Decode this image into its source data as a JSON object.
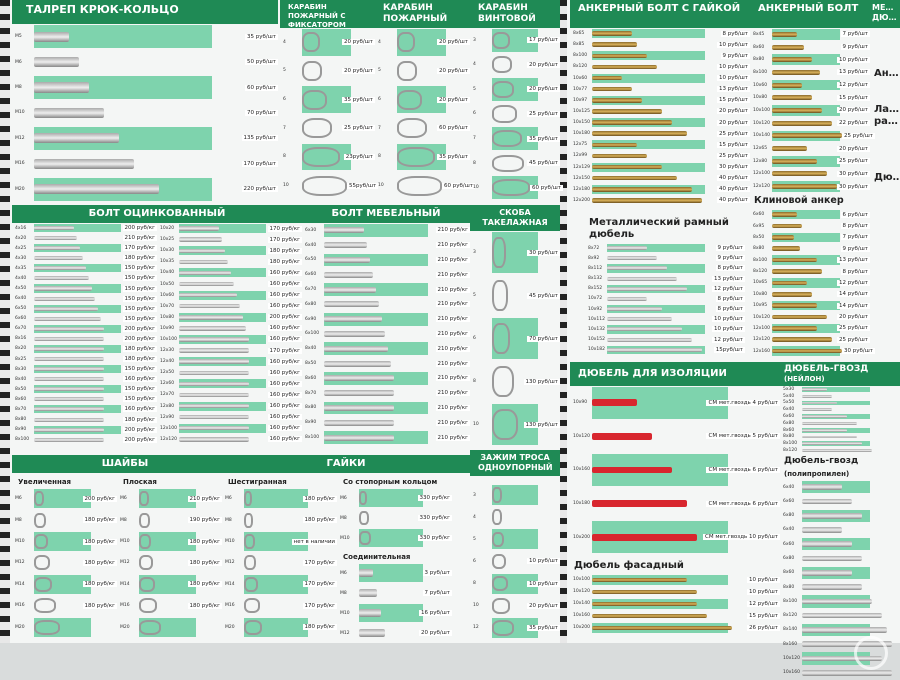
{
  "talrep": {
    "title": "Талреп крюк-кольцо",
    "rows": [
      {
        "size": "M5",
        "price": "35 руб/шт"
      },
      {
        "size": "M6",
        "price": "50 руб/шт"
      },
      {
        "size": "M8",
        "price": "60 руб/шт"
      },
      {
        "size": "M10",
        "price": "70 руб/шт"
      },
      {
        "size": "M12",
        "price": "135 руб/шт"
      },
      {
        "size": "M16",
        "price": "170 руб/шт"
      },
      {
        "size": "M20",
        "price": "220 руб/шт"
      }
    ]
  },
  "karabin_fix": {
    "title": "Карабин пожарный с фиксатором",
    "rows": [
      {
        "size": "4",
        "price": "20 руб/шт"
      },
      {
        "size": "5",
        "price": "20 руб/шт"
      },
      {
        "size": "6",
        "price": "35 руб/шт"
      },
      {
        "size": "7",
        "price": "25 руб/шт"
      },
      {
        "size": "8",
        "price": "23руб/шт"
      },
      {
        "size": "10",
        "price": "55руб/шт"
      }
    ]
  },
  "karabin_pozh": {
    "title": "Карабин пожарный",
    "rows": [
      {
        "size": "4",
        "price": "20 руб/шт"
      },
      {
        "size": "5",
        "price": "20 руб/шт"
      },
      {
        "size": "6",
        "price": "20 руб/шт"
      },
      {
        "size": "7",
        "price": "60 руб/шт"
      },
      {
        "size": "8",
        "price": "35 руб/шт"
      },
      {
        "size": "10",
        "price": "60 руб/шт"
      }
    ]
  },
  "karabin_vint": {
    "title": "Карабин винтовой",
    "rows": [
      {
        "size": "3",
        "price": "17 руб/шт"
      },
      {
        "size": "4",
        "price": "20 руб/шт"
      },
      {
        "size": "5",
        "price": "20 руб/шт"
      },
      {
        "size": "6",
        "price": "25 руб/шт"
      },
      {
        "size": "7",
        "price": "35 руб/шт"
      },
      {
        "size": "8",
        "price": "45 руб/шт"
      },
      {
        "size": "10",
        "price": "60 руб/шт"
      }
    ]
  },
  "bolt_ocink": {
    "title": "Болт оцинкованный",
    "col1": [
      {
        "size": "4x16",
        "price": "200 руб/кг"
      },
      {
        "size": "4x20",
        "price": "210 руб/кг"
      },
      {
        "size": "4x25",
        "price": "170 руб/кг"
      },
      {
        "size": "4x30",
        "price": "180 руб/кг"
      },
      {
        "size": "4x35",
        "price": "150 руб/кг"
      },
      {
        "size": "4x40",
        "price": "150 руб/кг"
      },
      {
        "size": "4x50",
        "price": "150 руб/кг"
      },
      {
        "size": "6x40",
        "price": "150 руб/кг"
      },
      {
        "size": "6x50",
        "price": "150 руб/кг"
      },
      {
        "size": "6x60",
        "price": "150 руб/кг"
      },
      {
        "size": "6x70",
        "price": "200 руб/кг"
      },
      {
        "size": "8x16",
        "price": "200 руб/кг"
      },
      {
        "size": "8x20",
        "price": "180 руб/кг"
      },
      {
        "size": "8x25",
        "price": "180 руб/кг"
      },
      {
        "size": "8x30",
        "price": "150 руб/кг"
      },
      {
        "size": "8x40",
        "price": "160 руб/кг"
      },
      {
        "size": "8x50",
        "price": "150 руб/кг"
      },
      {
        "size": "8x60",
        "price": "150 руб/кг"
      },
      {
        "size": "8x70",
        "price": "160 руб/кг"
      },
      {
        "size": "8x80",
        "price": "180 руб/кг"
      },
      {
        "size": "8x90",
        "price": "200 руб/кг"
      },
      {
        "size": "8x100",
        "price": "200 руб/кг"
      }
    ],
    "col2": [
      {
        "size": "10x20",
        "price": "170 руб/кг"
      },
      {
        "size": "10x25",
        "price": "170 руб/кг"
      },
      {
        "size": "10x30",
        "price": "180 руб/кг"
      },
      {
        "size": "10x35",
        "price": "180 руб/кг"
      },
      {
        "size": "10x40",
        "price": "160 руб/кг"
      },
      {
        "size": "10x50",
        "price": "160 руб/кг"
      },
      {
        "size": "10x60",
        "price": "160 руб/кг"
      },
      {
        "size": "10x70",
        "price": "160 руб/кг"
      },
      {
        "size": "10x80",
        "price": "200 руб/кг"
      },
      {
        "size": "10x90",
        "price": "160 руб/кг"
      },
      {
        "size": "10x100",
        "price": "160 руб/кг"
      },
      {
        "size": "12x30",
        "price": "170 руб/кг"
      },
      {
        "size": "12x40",
        "price": "160 руб/кг"
      },
      {
        "size": "12x50",
        "price": "160 руб/кг"
      },
      {
        "size": "12x60",
        "price": "160 руб/кг"
      },
      {
        "size": "12x70",
        "price": "160 руб/кг"
      },
      {
        "size": "12x80",
        "price": "160 руб/кг"
      },
      {
        "size": "12x90",
        "price": "160 руб/кг"
      },
      {
        "size": "12x100",
        "price": "160 руб/кг"
      },
      {
        "size": "12x120",
        "price": "160 руб/кг"
      }
    ]
  },
  "bolt_mebel": {
    "title": "Болт мебельный",
    "rows": [
      {
        "size": "6x30",
        "price": "210 руб/кг"
      },
      {
        "size": "6x40",
        "price": "210 руб/кг"
      },
      {
        "size": "6x50",
        "price": "210 руб/кг"
      },
      {
        "size": "6x60",
        "price": "210 руб/кг"
      },
      {
        "size": "6x70",
        "price": "210 руб/кг"
      },
      {
        "size": "6x80",
        "price": "210 руб/кг"
      },
      {
        "size": "6x90",
        "price": "210 руб/кг"
      },
      {
        "size": "6x100",
        "price": "210 руб/кг"
      },
      {
        "size": "8x40",
        "price": "210 руб/кг"
      },
      {
        "size": "8x50",
        "price": "210 руб/кг"
      },
      {
        "size": "8x60",
        "price": "210 руб/кг"
      },
      {
        "size": "8x70",
        "price": "210 руб/кг"
      },
      {
        "size": "8x80",
        "price": "210 руб/кг"
      },
      {
        "size": "8x90",
        "price": "210 руб/кг"
      },
      {
        "size": "8x100",
        "price": "210 руб/кг"
      }
    ]
  },
  "skoba": {
    "title": "Скоба такелажная",
    "rows": [
      {
        "size": "3",
        "price": "30 руб/шт"
      },
      {
        "size": "5",
        "price": "45 руб/шт"
      },
      {
        "size": "6",
        "price": "70 руб/шт"
      },
      {
        "size": "8",
        "price": "130 руб/шт"
      },
      {
        "size": "10",
        "price": "130 руб/шт"
      }
    ]
  },
  "shaiby": {
    "title": "Шайбы",
    "uvel": {
      "title": "Увеличенная",
      "rows": [
        {
          "size": "M6",
          "price": "200 руб/кг"
        },
        {
          "size": "M8",
          "price": "180 руб/кг"
        },
        {
          "size": "M10",
          "price": "180 руб/кг"
        },
        {
          "size": "M12",
          "price": "180 руб/кг"
        },
        {
          "size": "M14",
          "price": "180 руб/кг"
        },
        {
          "size": "M16",
          "price": "180 руб/кг"
        },
        {
          "size": "M20",
          "price": ""
        }
      ]
    },
    "plosk": {
      "title": "Плоская",
      "rows": [
        {
          "size": "M6",
          "price": "210 руб/кг"
        },
        {
          "size": "M8",
          "price": "190 руб/кг"
        },
        {
          "size": "M10",
          "price": "180 руб/кг"
        },
        {
          "size": "M12",
          "price": "180 руб/кг"
        },
        {
          "size": "M14",
          "price": "180 руб/кг"
        },
        {
          "size": "M16",
          "price": "180 руб/кг"
        },
        {
          "size": "M20",
          "price": ""
        }
      ]
    }
  },
  "gaiki": {
    "title": "Гайки",
    "shest": {
      "title": "Шестигранная",
      "rows": [
        {
          "size": "M6",
          "price": "180 руб/кг"
        },
        {
          "size": "M8",
          "price": "180 руб/кг"
        },
        {
          "size": "M10",
          "price": "нет в наличии"
        },
        {
          "size": "M12",
          "price": "170 руб/кг"
        },
        {
          "size": "M14",
          "price": "170 руб/кг"
        },
        {
          "size": "M16",
          "price": "170 руб/кг"
        },
        {
          "size": "M20",
          "price": "180 руб/кг"
        }
      ]
    },
    "stop": {
      "title": "Со стопорным кольцом",
      "rows": [
        {
          "size": "M6",
          "price": "330 руб/кг"
        },
        {
          "size": "M8",
          "price": "330 руб/кг"
        },
        {
          "size": "M10",
          "price": "330 руб/кг"
        }
      ]
    },
    "soed": {
      "title": "Соединительная",
      "rows": [
        {
          "size": "M6",
          "price": "3 руб/шт"
        },
        {
          "size": "M8",
          "price": "7 руб/шт"
        },
        {
          "size": "M10",
          "price": "16 руб/шт"
        },
        {
          "size": "M12",
          "price": "20 руб/шт"
        }
      ]
    }
  },
  "zazhim": {
    "title": "Зажим троса одноупорный",
    "rows": [
      {
        "size": "3",
        "price": ""
      },
      {
        "size": "4",
        "price": ""
      },
      {
        "size": "5",
        "price": ""
      },
      {
        "size": "6",
        "price": "10 руб/шт"
      },
      {
        "size": "8",
        "price": "10 руб/шт"
      },
      {
        "size": "10",
        "price": "20 руб/шт"
      },
      {
        "size": "12",
        "price": "35 руб/шт"
      }
    ]
  },
  "anker_gaika": {
    "title": "Анкерный болт с гайкой",
    "rows": [
      {
        "size": "8x65",
        "price": "8 руб/шт"
      },
      {
        "size": "8x85",
        "price": "10 руб/шт"
      },
      {
        "size": "8x100",
        "price": "9 руб/шт"
      },
      {
        "size": "8x120",
        "price": "10 руб/шт"
      },
      {
        "size": "10x60",
        "price": "10 руб/шт"
      },
      {
        "size": "10x77",
        "price": "13 руб/шт"
      },
      {
        "size": "10x97",
        "price": "15 руб/шт"
      },
      {
        "size": "10x125",
        "price": "20 руб/шт"
      },
      {
        "size": "10x150",
        "price": "20 руб/шт"
      },
      {
        "size": "10x180",
        "price": "25 руб/шт"
      },
      {
        "size": "12x75",
        "price": "15 руб/шт"
      },
      {
        "size": "12x99",
        "price": "25 руб/шт"
      },
      {
        "size": "12x129",
        "price": "30 руб/шт"
      },
      {
        "size": "12x150",
        "price": "40 руб/шт"
      },
      {
        "size": "12x180",
        "price": "40 руб/шт"
      },
      {
        "size": "12x200",
        "price": "40 руб/шт"
      }
    ]
  },
  "anker_bolt": {
    "title": "Анкерный болт",
    "rows": [
      {
        "size": "8x45",
        "price": "7 руб/шт"
      },
      {
        "size": "8x60",
        "price": "9 руб/шт"
      },
      {
        "size": "8x80",
        "price": "10 руб/шт"
      },
      {
        "size": "8x100",
        "price": "13 руб/шт"
      },
      {
        "size": "10x60",
        "price": "12 руб/шт"
      },
      {
        "size": "10x80",
        "price": "15 руб/шт"
      },
      {
        "size": "10x100",
        "price": "20 руб/шт"
      },
      {
        "size": "10x120",
        "price": "22 руб/шт"
      },
      {
        "size": "10x140",
        "price": "25 руб/шт"
      },
      {
        "size": "12x65",
        "price": "20 руб/шт"
      },
      {
        "size": "12x80",
        "price": "25 руб/шт"
      },
      {
        "size": "12x100",
        "price": "30 руб/шт"
      },
      {
        "size": "12x120",
        "price": "30 руб/шт"
      }
    ]
  },
  "klin": {
    "title": "Клиновой анкер",
    "rows": [
      {
        "size": "6x60",
        "price": "6 руб/шт"
      },
      {
        "size": "6x95",
        "price": "8 руб/шт"
      },
      {
        "size": "8x50",
        "price": "7 руб/шт"
      },
      {
        "size": "8x80",
        "price": "9 руб/шт"
      },
      {
        "size": "8x100",
        "price": "13 руб/шт"
      },
      {
        "size": "8x120",
        "price": "8 руб/шт"
      },
      {
        "size": "10x65",
        "price": "12 руб/шт"
      },
      {
        "size": "10x80",
        "price": "14 руб/шт"
      },
      {
        "size": "10x95",
        "price": "14 руб/шт"
      },
      {
        "size": "10x120",
        "price": "20 руб/шт"
      },
      {
        "size": "12x100",
        "price": "25 руб/шт"
      },
      {
        "size": "12x120",
        "price": "25 руб/шт"
      },
      {
        "size": "12x160",
        "price": "30 руб/шт"
      }
    ]
  },
  "ramny": {
    "title": "Металлический рамный дюбель",
    "rows": [
      {
        "size": "8x72",
        "price": "9 руб/шт"
      },
      {
        "size": "8x92",
        "price": "9 руб/шт"
      },
      {
        "size": "8x112",
        "price": "8 руб/шт"
      },
      {
        "size": "8x132",
        "price": "13 руб/шт"
      },
      {
        "size": "8x152",
        "price": "12 руб/шт"
      },
      {
        "size": "10x72",
        "price": "8 руб/шт"
      },
      {
        "size": "10x92",
        "price": "8 руб/шт"
      },
      {
        "size": "10x112",
        "price": "10 руб/шт"
      },
      {
        "size": "10x132",
        "price": "10 руб/шт"
      },
      {
        "size": "10x152",
        "price": "12 руб/шт"
      },
      {
        "size": "10x182",
        "price": "15руб/шт"
      }
    ]
  },
  "partial": {
    "title": "Ме… дю…",
    "title2": "Ан…",
    "title3": "Ла… ра…",
    "title4": "Дю…"
  },
  "izol": {
    "title": "Дюбель для изоляции",
    "rows": [
      {
        "size": "10x90",
        "price": "СМ мет.гвоздь 4 руб/шт"
      },
      {
        "size": "10x120",
        "price": "СМ мет.гвоздь 5 руб/шт"
      },
      {
        "size": "10x160",
        "price": "СМ мет.гвоздь 6 руб/шт"
      },
      {
        "size": "10x180",
        "price": "СМ мет.гвоздь 6 руб/шт"
      },
      {
        "size": "10x200",
        "price": "СМ мет.гвоздь 10 руб/шт"
      }
    ]
  },
  "fasad": {
    "title": "Дюбель фасадный",
    "rows": [
      {
        "size": "10x100",
        "price": "10 руб/шт"
      },
      {
        "size": "10x120",
        "price": "10 руб/шт"
      },
      {
        "size": "10x140",
        "price": "12 руб/шт"
      },
      {
        "size": "10x160",
        "price": "15 руб/шт"
      },
      {
        "size": "10x200",
        "price": "26 руб/шт"
      }
    ]
  },
  "gvozd_neilon": {
    "title": "Дюбель-гвозд",
    "subtitle": "(нейлон)",
    "rows": [
      {
        "size": "5x30",
        "price": ""
      },
      {
        "size": "5x40",
        "price": ""
      },
      {
        "size": "5x50",
        "price": ""
      },
      {
        "size": "6x40",
        "price": ""
      },
      {
        "size": "6x60",
        "price": ""
      },
      {
        "size": "6x80",
        "price": ""
      },
      {
        "size": "8x60",
        "price": ""
      },
      {
        "size": "8x80",
        "price": ""
      },
      {
        "size": "8x100",
        "price": ""
      },
      {
        "size": "8x120",
        "price": ""
      }
    ]
  },
  "gvozd_pp": {
    "title": "Дюбель-гвозд",
    "subtitle": "(полипропилен)",
    "rows": [
      {
        "size": "6x40",
        "price": ""
      },
      {
        "size": "6x60",
        "price": ""
      },
      {
        "size": "6x80",
        "price": ""
      },
      {
        "size": "6x40",
        "price": ""
      },
      {
        "size": "6x60",
        "price": ""
      },
      {
        "size": "6x80",
        "price": ""
      },
      {
        "size": "8x60",
        "price": ""
      },
      {
        "size": "8x80",
        "price": ""
      },
      {
        "size": "8x100",
        "price": ""
      },
      {
        "size": "8x120",
        "price": ""
      },
      {
        "size": "8x140",
        "price": ""
      },
      {
        "size": "8x160",
        "price": ""
      },
      {
        "size": "10x120",
        "price": ""
      },
      {
        "size": "10x160",
        "price": ""
      }
    ]
  },
  "colors": {
    "header": "#1f8a55",
    "band": "#7ed3ad",
    "background": "#f4f6f5"
  }
}
